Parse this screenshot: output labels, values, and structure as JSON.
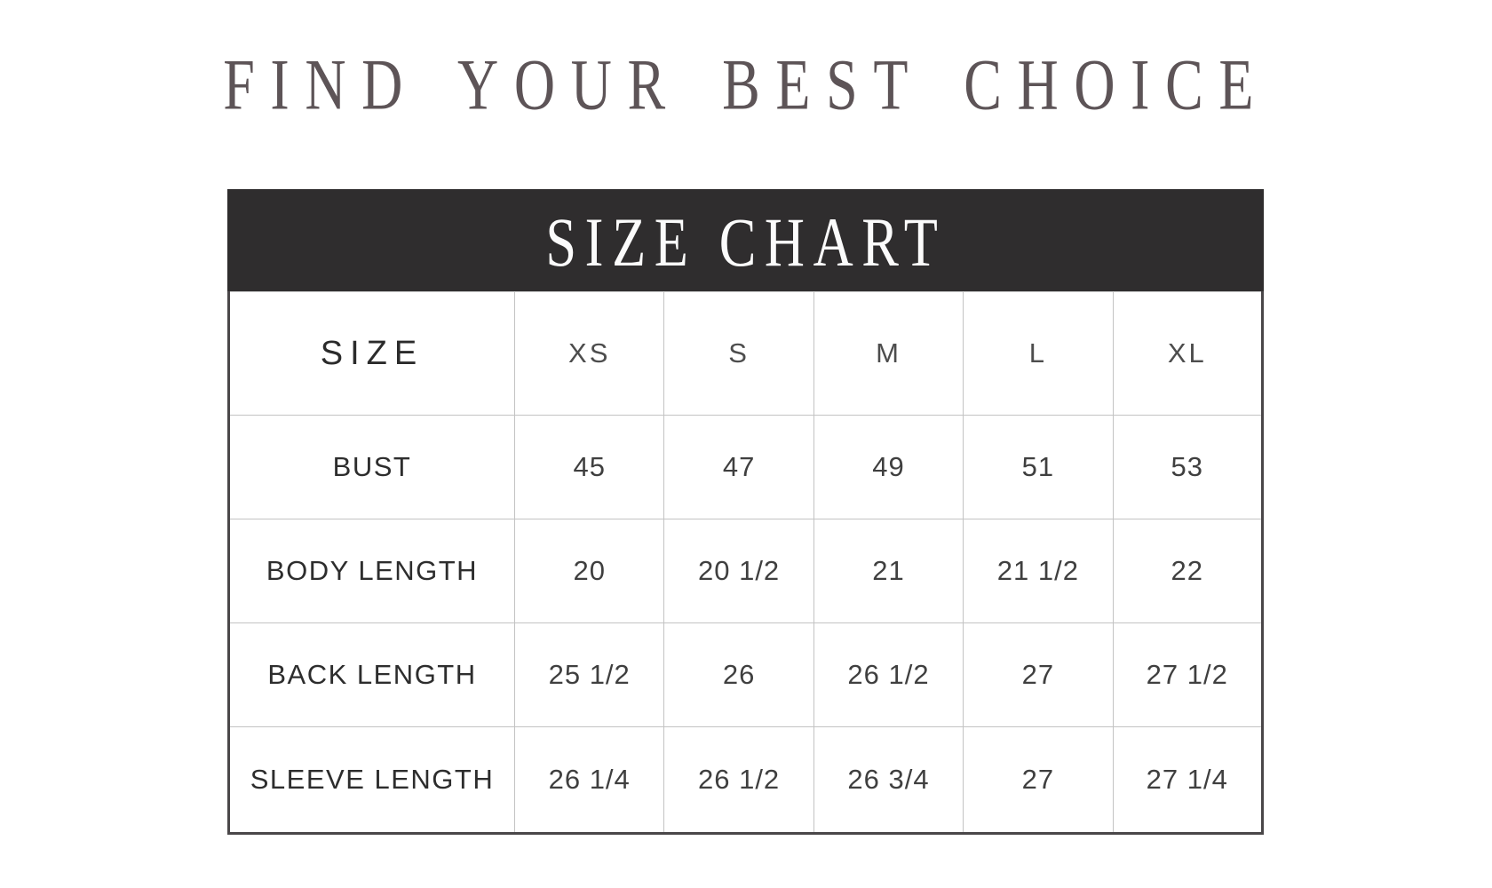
{
  "title": {
    "text": "FIND YOUR BEST CHOICE",
    "color": "#5d5457"
  },
  "banner": {
    "text": "SIZE CHART",
    "background": "#2f2d2e",
    "text_color": "#fbfbfb"
  },
  "chart_data": {
    "type": "table",
    "title": "SIZE CHART",
    "columns": [
      "SIZE",
      "XS",
      "S",
      "M",
      "L",
      "XL"
    ],
    "rows": [
      [
        "BUST",
        "45",
        "47",
        "49",
        "51",
        "53"
      ],
      [
        "BODY LENGTH",
        "20",
        "20 1/2",
        "21",
        "21 1/2",
        "22"
      ],
      [
        "BACK LENGTH",
        "25 1/2",
        "26",
        "26 1/2",
        "27",
        "27 1/2"
      ],
      [
        "SLEEVE LENGTH",
        "26 1/4",
        "26 1/2",
        "26 3/4",
        "27",
        "27 1/4"
      ]
    ],
    "layout": {
      "grid": true,
      "header_row": true,
      "label_column": true
    }
  },
  "colors": {
    "outer_border": "#4a4749",
    "grid_line": "#c3c3c3",
    "size_header_text": "#2b2b2b",
    "column_header_text": "#4d4d4d",
    "row_label_text": "#2d2d2d",
    "value_text": "#3f3f3f"
  }
}
